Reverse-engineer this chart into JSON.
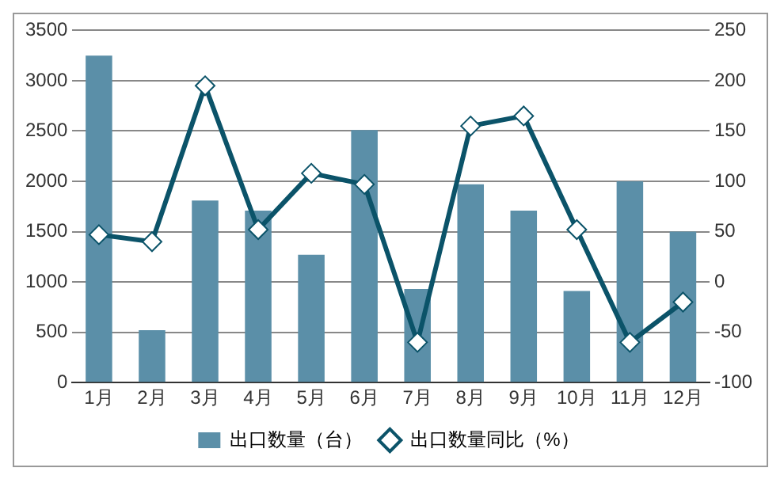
{
  "chart_data": {
    "type": "bar",
    "categories": [
      "1月",
      "2月",
      "3月",
      "4月",
      "5月",
      "6月",
      "7月",
      "8月",
      "9月",
      "10月",
      "11月",
      "12月"
    ],
    "series": [
      {
        "name": "出口数量（台）",
        "color": "#5b8fa8",
        "values": [
          3250,
          520,
          1810,
          1710,
          1270,
          2510,
          930,
          1970,
          1710,
          910,
          2000,
          1500
        ]
      },
      {
        "name": "出口数量同比（%）",
        "type": "line",
        "axis": "y2",
        "color": "#0b5369",
        "marker": "diamond",
        "values": [
          47,
          40,
          195,
          52,
          108,
          97,
          -60,
          155,
          165,
          52,
          -60,
          -20
        ]
      }
    ],
    "ylim": [
      0,
      3500
    ],
    "yticks": [
      0,
      500,
      1000,
      1500,
      2000,
      2500,
      3000,
      3500
    ],
    "y2lim": [
      -100,
      250
    ],
    "y2ticks": [
      -100,
      -50,
      0,
      50,
      100,
      150,
      200,
      250
    ],
    "grid": "y",
    "legend": "bottom"
  }
}
